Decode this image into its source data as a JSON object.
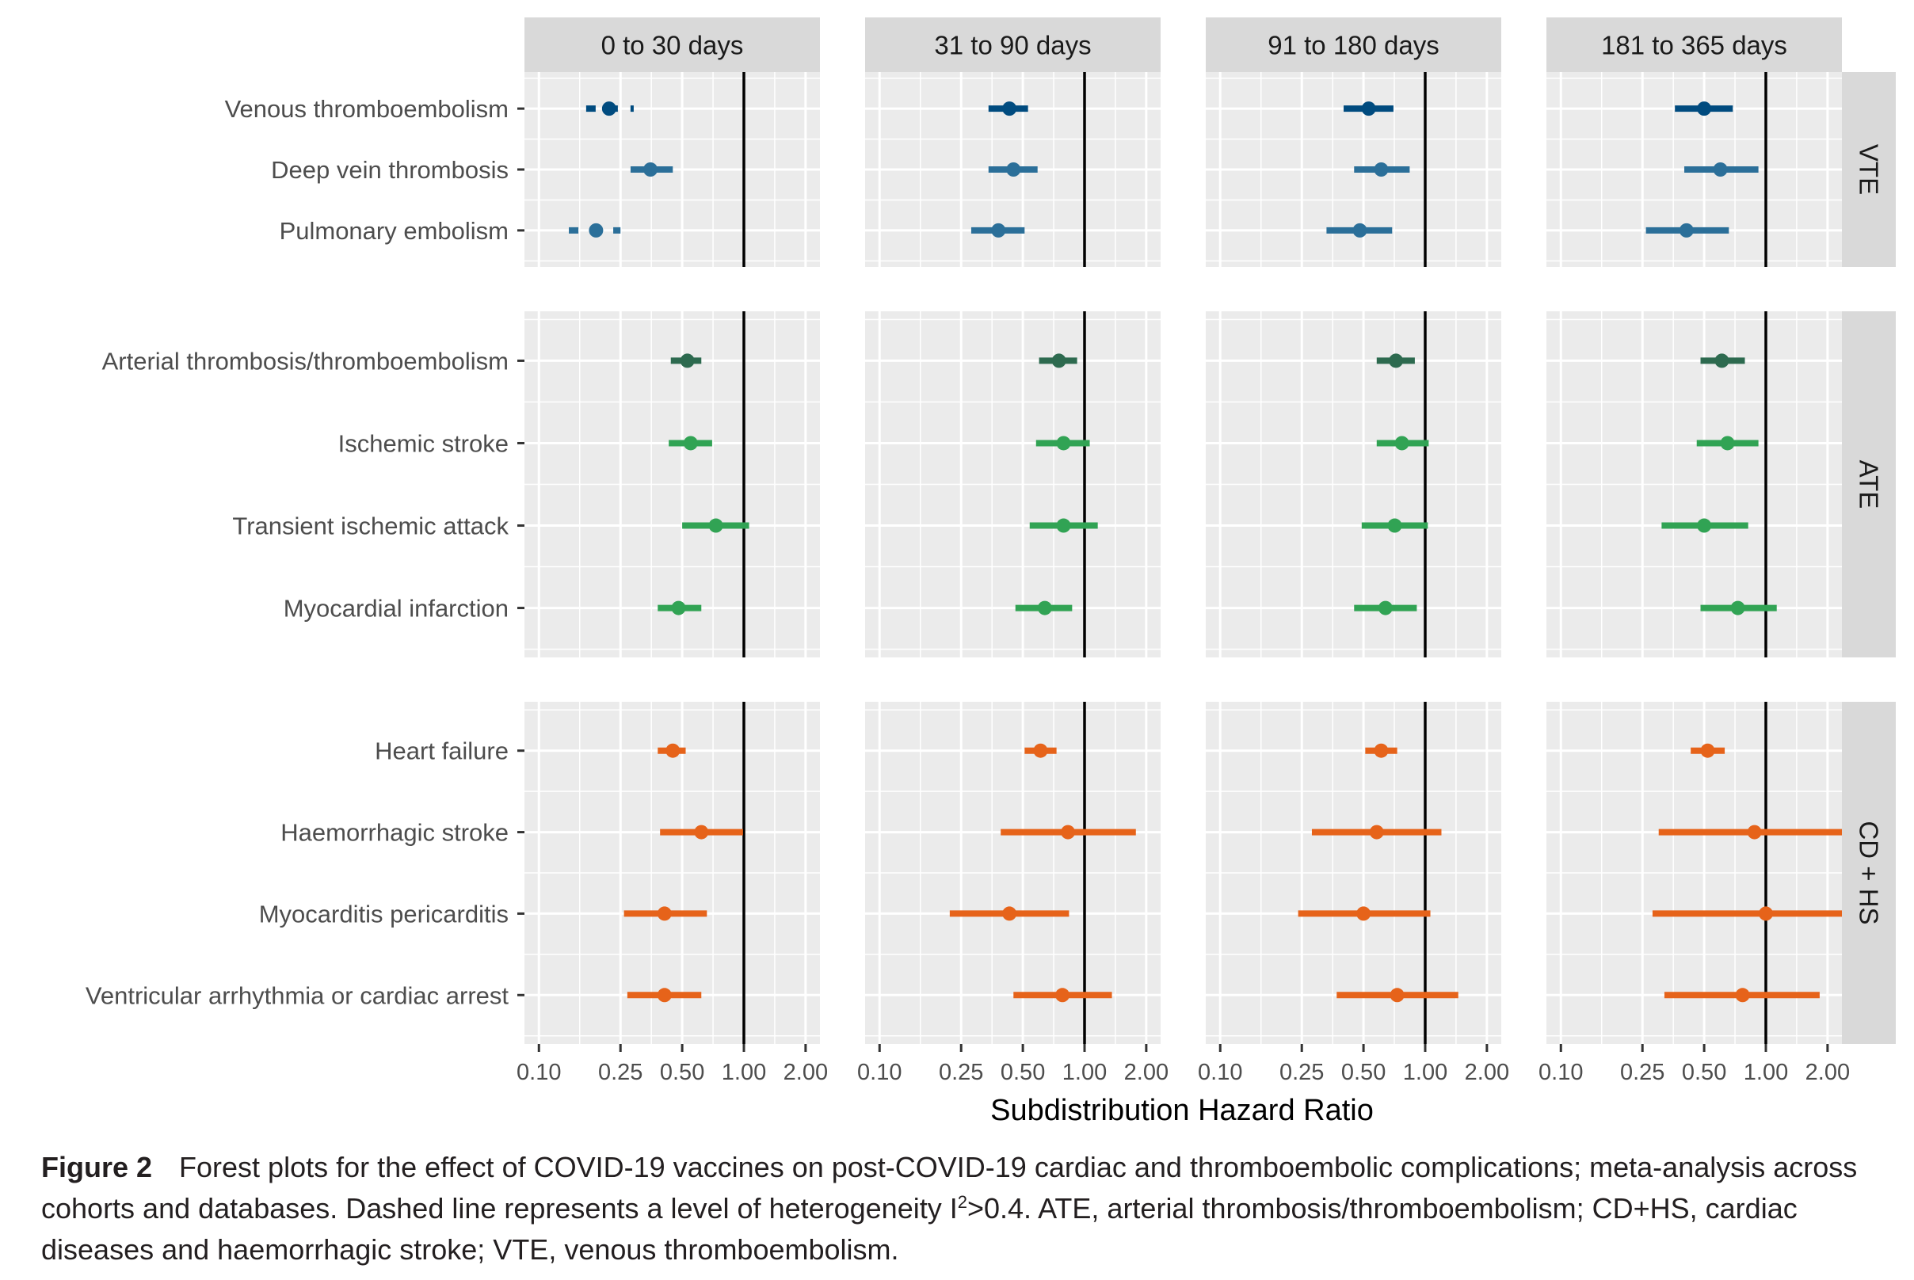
{
  "chart_data": {
    "type": "forest",
    "xscale": "log",
    "xlabel": "Subdistribution Hazard Ratio",
    "xticks": [
      0.1,
      0.25,
      0.5,
      1.0,
      2.0
    ],
    "xtick_labels": [
      "0.10",
      "0.25",
      "0.50",
      "1.00",
      "2.00"
    ],
    "xlim": [
      0.085,
      2.35
    ],
    "reference_line": 1.0,
    "grid": true,
    "facet_columns": [
      "0 to 30 days",
      "31 to 90 days",
      "91 to 180 days",
      "181 to 365 days"
    ],
    "facet_rows": [
      {
        "label": "VTE",
        "outcomes": [
          {
            "name": "Venous thromboembolism",
            "color": "#004b7f"
          },
          {
            "name": "Deep vein thrombosis",
            "color": "#2b6f99"
          },
          {
            "name": "Pulmonary embolism",
            "color": "#2b6f99"
          }
        ]
      },
      {
        "label": "ATE",
        "outcomes": [
          {
            "name": "Arterial thrombosis/thromboembolism",
            "color": "#2d6a4f"
          },
          {
            "name": "Ischemic stroke",
            "color": "#31a354"
          },
          {
            "name": "Transient ischemic attack",
            "color": "#31a354"
          },
          {
            "name": "Myocardial infarction",
            "color": "#31a354"
          }
        ]
      },
      {
        "label": "CD + HS",
        "outcomes": [
          {
            "name": "Heart failure",
            "color": "#e6631a"
          },
          {
            "name": "Haemorrhagic stroke",
            "color": "#e6631a"
          },
          {
            "name": "Myocarditis pericarditis",
            "color": "#e6631a"
          },
          {
            "name": "Ventricular arrhythmia or cardiac arrest",
            "color": "#e6631a"
          }
        ]
      }
    ],
    "estimates": {
      "0 to 30 days": {
        "Venous thromboembolism": {
          "hr": 0.22,
          "lo": 0.17,
          "hi": 0.29,
          "dashed": true
        },
        "Deep vein thrombosis": {
          "hr": 0.35,
          "lo": 0.28,
          "hi": 0.45,
          "dashed": false
        },
        "Pulmonary embolism": {
          "hr": 0.19,
          "lo": 0.14,
          "hi": 0.25,
          "dashed": true
        },
        "Arterial thrombosis/thromboembolism": {
          "hr": 0.53,
          "lo": 0.44,
          "hi": 0.62,
          "dashed": false
        },
        "Ischemic stroke": {
          "hr": 0.55,
          "lo": 0.43,
          "hi": 0.7,
          "dashed": false
        },
        "Transient ischemic attack": {
          "hr": 0.73,
          "lo": 0.5,
          "hi": 1.06,
          "dashed": false
        },
        "Myocardial infarction": {
          "hr": 0.48,
          "lo": 0.38,
          "hi": 0.62,
          "dashed": false
        },
        "Heart failure": {
          "hr": 0.45,
          "lo": 0.38,
          "hi": 0.52,
          "dashed": false
        },
        "Haemorrhagic stroke": {
          "hr": 0.62,
          "lo": 0.39,
          "hi": 0.99,
          "dashed": false
        },
        "Myocarditis pericarditis": {
          "hr": 0.41,
          "lo": 0.26,
          "hi": 0.66,
          "dashed": false
        },
        "Ventricular arrhythmia or cardiac arrest": {
          "hr": 0.41,
          "lo": 0.27,
          "hi": 0.62,
          "dashed": false
        }
      },
      "31 to 90 days": {
        "Venous thromboembolism": {
          "hr": 0.43,
          "lo": 0.34,
          "hi": 0.53,
          "dashed": false
        },
        "Deep vein thrombosis": {
          "hr": 0.45,
          "lo": 0.34,
          "hi": 0.59,
          "dashed": false
        },
        "Pulmonary embolism": {
          "hr": 0.38,
          "lo": 0.28,
          "hi": 0.51,
          "dashed": false
        },
        "Arterial thrombosis/thromboembolism": {
          "hr": 0.75,
          "lo": 0.6,
          "hi": 0.92,
          "dashed": false
        },
        "Ischemic stroke": {
          "hr": 0.79,
          "lo": 0.58,
          "hi": 1.06,
          "dashed": false
        },
        "Transient ischemic attack": {
          "hr": 0.79,
          "lo": 0.54,
          "hi": 1.16,
          "dashed": false
        },
        "Myocardial infarction": {
          "hr": 0.64,
          "lo": 0.46,
          "hi": 0.87,
          "dashed": false
        },
        "Heart failure": {
          "hr": 0.61,
          "lo": 0.51,
          "hi": 0.73,
          "dashed": false
        },
        "Haemorrhagic stroke": {
          "hr": 0.83,
          "lo": 0.39,
          "hi": 1.78,
          "dashed": false
        },
        "Myocarditis pericarditis": {
          "hr": 0.43,
          "lo": 0.22,
          "hi": 0.84,
          "dashed": false
        },
        "Ventricular arrhythmia or cardiac arrest": {
          "hr": 0.78,
          "lo": 0.45,
          "hi": 1.36,
          "dashed": false
        }
      },
      "91 to 180 days": {
        "Venous thromboembolism": {
          "hr": 0.53,
          "lo": 0.4,
          "hi": 0.7,
          "dashed": false
        },
        "Deep vein thrombosis": {
          "hr": 0.61,
          "lo": 0.45,
          "hi": 0.84,
          "dashed": false
        },
        "Pulmonary embolism": {
          "hr": 0.48,
          "lo": 0.33,
          "hi": 0.69,
          "dashed": false
        },
        "Arterial thrombosis/thromboembolism": {
          "hr": 0.72,
          "lo": 0.58,
          "hi": 0.89,
          "dashed": false
        },
        "Ischemic stroke": {
          "hr": 0.77,
          "lo": 0.58,
          "hi": 1.04,
          "dashed": false
        },
        "Transient ischemic attack": {
          "hr": 0.71,
          "lo": 0.49,
          "hi": 1.03,
          "dashed": false
        },
        "Myocardial infarction": {
          "hr": 0.64,
          "lo": 0.45,
          "hi": 0.91,
          "dashed": false
        },
        "Heart failure": {
          "hr": 0.61,
          "lo": 0.51,
          "hi": 0.73,
          "dashed": false
        },
        "Haemorrhagic stroke": {
          "hr": 0.58,
          "lo": 0.28,
          "hi": 1.2,
          "dashed": false
        },
        "Myocarditis pericarditis": {
          "hr": 0.5,
          "lo": 0.24,
          "hi": 1.06,
          "dashed": false
        },
        "Ventricular arrhythmia or cardiac arrest": {
          "hr": 0.73,
          "lo": 0.37,
          "hi": 1.45,
          "dashed": false
        }
      },
      "181 to 365 days": {
        "Venous thromboembolism": {
          "hr": 0.5,
          "lo": 0.36,
          "hi": 0.69,
          "dashed": false
        },
        "Deep vein thrombosis": {
          "hr": 0.6,
          "lo": 0.4,
          "hi": 0.92,
          "dashed": false
        },
        "Pulmonary embolism": {
          "hr": 0.41,
          "lo": 0.26,
          "hi": 0.66,
          "dashed": false
        },
        "Arterial thrombosis/thromboembolism": {
          "hr": 0.61,
          "lo": 0.48,
          "hi": 0.79,
          "dashed": false
        },
        "Ischemic stroke": {
          "hr": 0.65,
          "lo": 0.46,
          "hi": 0.92,
          "dashed": false
        },
        "Transient ischemic attack": {
          "hr": 0.5,
          "lo": 0.31,
          "hi": 0.82,
          "dashed": false
        },
        "Myocardial infarction": {
          "hr": 0.73,
          "lo": 0.48,
          "hi": 1.13,
          "dashed": false
        },
        "Heart failure": {
          "hr": 0.52,
          "lo": 0.43,
          "hi": 0.63,
          "dashed": false
        },
        "Haemorrhagic stroke": {
          "hr": 0.88,
          "lo": 0.3,
          "hi": 2.6,
          "dashed": false
        },
        "Myocarditis pericarditis": {
          "hr": 1.0,
          "lo": 0.28,
          "hi": 3.0,
          "dashed": false
        },
        "Ventricular arrhythmia or cardiac arrest": {
          "hr": 0.77,
          "lo": 0.32,
          "hi": 1.83,
          "dashed": false
        }
      }
    }
  },
  "caption": {
    "label": "Figure 2",
    "text_before_sup": "Forest plots for the effect of COVID-19 vaccines on post-COVID-19 cardiac and thromboembolic complications; meta-analysis across cohorts and databases. Dashed line represents a level of heterogeneity I",
    "sup": "2",
    "text_after_sup": ">0.4. ATE, arterial thrombosis/thromboembolism; CD+HS, cardiac diseases and haemorrhagic stroke; VTE, venous thromboembolism."
  },
  "colors": {
    "panel_bg": "#ebebeb",
    "strip_bg": "#d9d9d9",
    "grid": "#ffffff",
    "reference": "#000000",
    "axis_text": "#4d4d4d"
  }
}
